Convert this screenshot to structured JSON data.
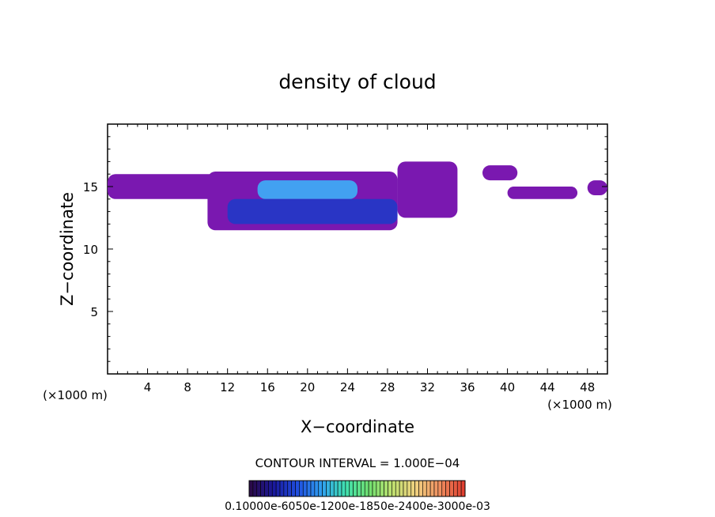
{
  "chart_data": {
    "type": "heatmap",
    "title": "density of cloud",
    "xlabel": "X−coordinate",
    "ylabel": "Z−coordinate",
    "x_unit_left": "(×1000 m)",
    "x_unit_right": "(×1000 m)",
    "xlim": [
      0,
      50
    ],
    "ylim": [
      0,
      20
    ],
    "x_ticks": [
      "4",
      "8",
      "12",
      "16",
      "20",
      "24",
      "28",
      "32",
      "36",
      "40",
      "44",
      "48"
    ],
    "y_ticks": [
      "5",
      "10",
      "15"
    ],
    "contour_interval_label": "CONTOUR INTERVAL = 1.000E−04",
    "colorbar_labels_text": "0.10000e-6050e-1200e-1850e-2400e-3000e-03",
    "colorbar_colors": [
      "#2a0a4a",
      "#1a1aa0",
      "#2050e0",
      "#30a0f0",
      "#40e0b0",
      "#70e070",
      "#c0e070",
      "#f0d080",
      "#f09060",
      "#e04030"
    ],
    "cloud_regions": [
      {
        "name": "upper-left-layer",
        "x": [
          0,
          16
        ],
        "z": [
          14.0,
          16.0
        ],
        "level": 1
      },
      {
        "name": "main-anvil",
        "x": [
          10,
          29
        ],
        "z": [
          11.5,
          16.2
        ],
        "level": 1
      },
      {
        "name": "anvil-core-upper",
        "x": [
          15,
          25
        ],
        "z": [
          14.0,
          15.5
        ],
        "level": 6
      },
      {
        "name": "anvil-core-lower",
        "x": [
          12,
          29
        ],
        "z": [
          12.0,
          14.0
        ],
        "level": 3
      },
      {
        "name": "tower-right",
        "x": [
          29,
          35
        ],
        "z": [
          12.5,
          17.0
        ],
        "level": 1
      },
      {
        "name": "patch-38-41",
        "x": [
          37.5,
          41
        ],
        "z": [
          15.5,
          16.7
        ],
        "level": 1
      },
      {
        "name": "patch-40-47",
        "x": [
          40,
          47
        ],
        "z": [
          14.0,
          15.0
        ],
        "level": 1
      },
      {
        "name": "patch-48-50",
        "x": [
          48,
          50
        ],
        "z": [
          14.3,
          15.5
        ],
        "level": 1
      }
    ]
  }
}
